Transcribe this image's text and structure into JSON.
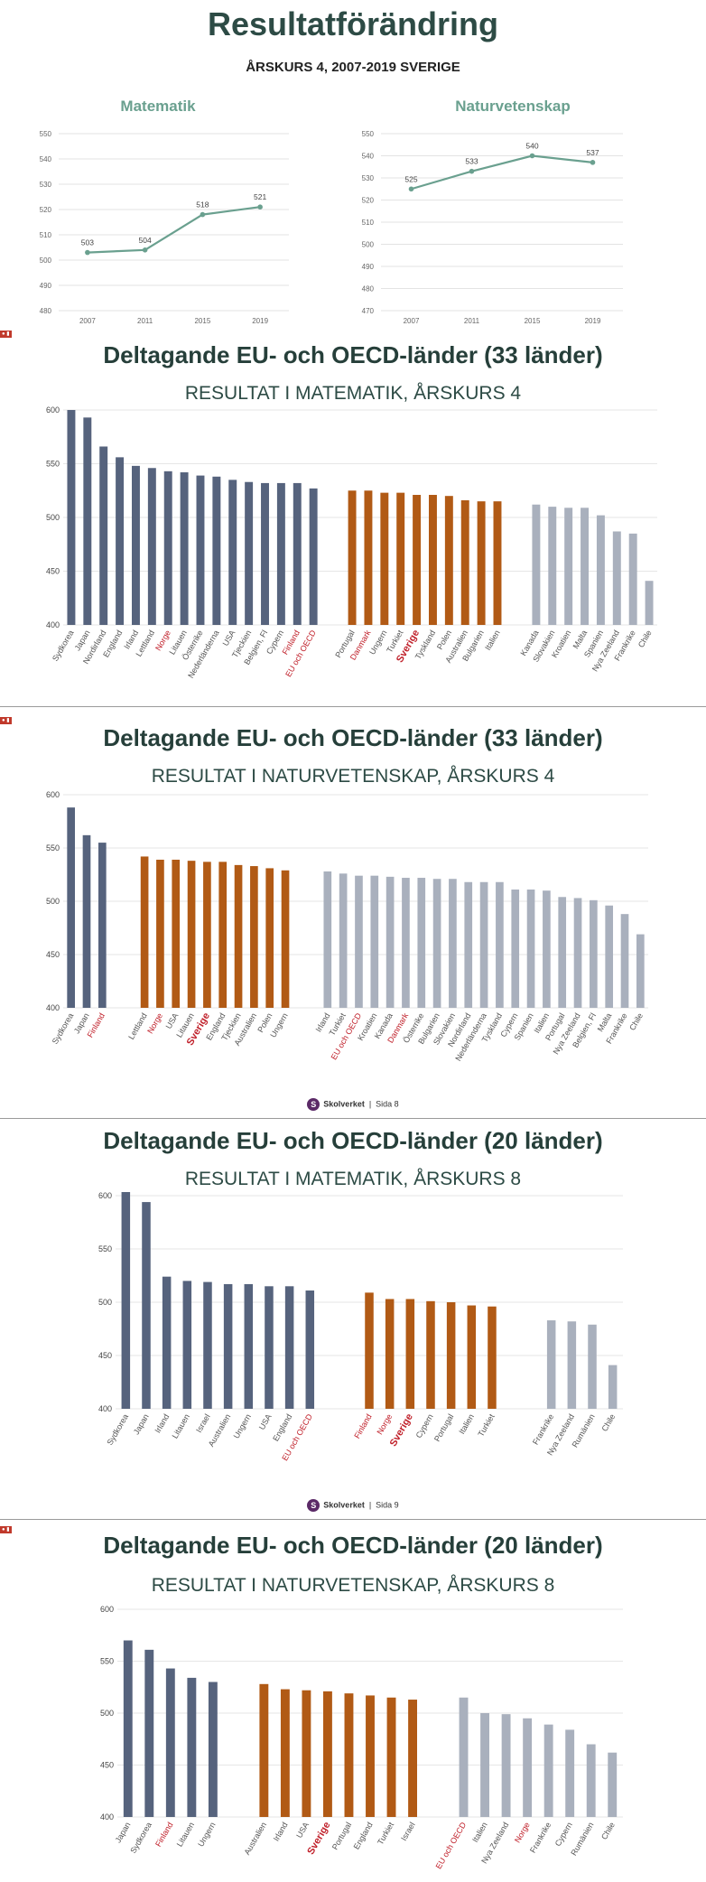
{
  "header": {
    "title": "Resultatförändring",
    "subtitle": "ÅRSKURS 4, 2007-2019 SVERIGE"
  },
  "sections": [
    {
      "title": "Deltagande EU- och OECD-länder (33 länder)",
      "subtitle": "RESULTAT I MATEMATIK, ÅRSKURS 4"
    },
    {
      "title": "Deltagande EU- och OECD-länder (33 länder)",
      "subtitle": "RESULTAT I NATURVETENSKAP, ÅRSKURS 4"
    },
    {
      "title": "Deltagande EU- och OECD-länder (20 länder)",
      "subtitle": "RESULTAT I MATEMATIK, ÅRSKURS 8"
    },
    {
      "title": "Deltagande EU- och OECD-länder (20 länder)",
      "subtitle": "RESULTAT I NATURVETENSKAP, ÅRSKURS 8"
    }
  ],
  "footers": [
    {
      "brand": "Skolverket",
      "page": "Sida 8"
    },
    {
      "brand": "Skolverket",
      "page": "Sida 9"
    }
  ],
  "colors": {
    "line": "#6aa08f",
    "above": "#56637d",
    "same": "#b15a15",
    "below": "#a9b0bd",
    "highlight": "#c0202a"
  },
  "chart_data": [
    {
      "type": "line",
      "title": "Matematik",
      "x": [
        "2007",
        "2011",
        "2015",
        "2019"
      ],
      "values": [
        503,
        504,
        518,
        521
      ],
      "ylim": [
        480,
        550
      ],
      "yticks": [
        480,
        490,
        500,
        510,
        520,
        530,
        540,
        550
      ]
    },
    {
      "type": "line",
      "title": "Naturvetenskap",
      "x": [
        "2007",
        "2011",
        "2015",
        "2019"
      ],
      "values": [
        525,
        533,
        540,
        537
      ],
      "ylim": [
        470,
        550
      ],
      "yticks": [
        470,
        480,
        490,
        500,
        510,
        520,
        530,
        540,
        550
      ]
    },
    {
      "type": "bar",
      "title": "RESULTAT I MATEMATIK, ÅRSKURS 4",
      "ylim": [
        400,
        600
      ],
      "yticks": [
        400,
        450,
        500,
        550,
        600
      ],
      "groups": [
        {
          "color": "above",
          "items": [
            {
              "label": "Sydkorea",
              "value": 600
            },
            {
              "label": "Japan",
              "value": 593
            },
            {
              "label": "Nordirland",
              "value": 566
            },
            {
              "label": "England",
              "value": 556
            },
            {
              "label": "Irland",
              "value": 548
            },
            {
              "label": "Lettland",
              "value": 546
            },
            {
              "label": "Norge",
              "value": 543,
              "highlight": true
            },
            {
              "label": "Litauen",
              "value": 542
            },
            {
              "label": "Österrike",
              "value": 539
            },
            {
              "label": "Nederländerna",
              "value": 538
            },
            {
              "label": "USA",
              "value": 535
            },
            {
              "label": "Tjeckien",
              "value": 533
            },
            {
              "label": "Belgien, Fl",
              "value": 532
            },
            {
              "label": "Cypern",
              "value": 532
            },
            {
              "label": "Finland",
              "value": 532,
              "highlight": true
            },
            {
              "label": "EU och OECD",
              "value": 527,
              "highlight": true
            }
          ]
        },
        {
          "color": "same",
          "items": [
            {
              "label": "Portugal",
              "value": 525
            },
            {
              "label": "Danmark",
              "value": 525,
              "highlight": true
            },
            {
              "label": "Ungern",
              "value": 523
            },
            {
              "label": "Turkiet",
              "value": 523
            },
            {
              "label": "Sverige",
              "value": 521,
              "highlight": true,
              "bold": true
            },
            {
              "label": "Tyskland",
              "value": 521
            },
            {
              "label": "Polen",
              "value": 520
            },
            {
              "label": "Australien",
              "value": 516
            },
            {
              "label": "Bulgarien",
              "value": 515
            },
            {
              "label": "Italien",
              "value": 515
            }
          ]
        },
        {
          "color": "below",
          "items": [
            {
              "label": "Kanada",
              "value": 512
            },
            {
              "label": "Slovakien",
              "value": 510
            },
            {
              "label": "Kroatien",
              "value": 509
            },
            {
              "label": "Malta",
              "value": 509
            },
            {
              "label": "Spanien",
              "value": 502
            },
            {
              "label": "Nya Zeeland",
              "value": 487
            },
            {
              "label": "Frankrike",
              "value": 485
            },
            {
              "label": "Chile",
              "value": 441
            }
          ]
        }
      ]
    },
    {
      "type": "bar",
      "title": "RESULTAT I NATURVETENSKAP, ÅRSKURS 4",
      "ylim": [
        400,
        600
      ],
      "yticks": [
        400,
        450,
        500,
        550,
        600
      ],
      "groups": [
        {
          "color": "above",
          "items": [
            {
              "label": "Sydkorea",
              "value": 588
            },
            {
              "label": "Japan",
              "value": 562
            },
            {
              "label": "Finland",
              "value": 555,
              "highlight": true
            }
          ]
        },
        {
          "color": "same",
          "items": [
            {
              "label": "Lettland",
              "value": 542
            },
            {
              "label": "Norge",
              "value": 539,
              "highlight": true
            },
            {
              "label": "USA",
              "value": 539
            },
            {
              "label": "Litauen",
              "value": 538
            },
            {
              "label": "Sverige",
              "value": 537,
              "highlight": true,
              "bold": true
            },
            {
              "label": "England",
              "value": 537
            },
            {
              "label": "Tjeckien",
              "value": 534
            },
            {
              "label": "Australien",
              "value": 533
            },
            {
              "label": "Polen",
              "value": 531
            },
            {
              "label": "Ungern",
              "value": 529
            }
          ]
        },
        {
          "color": "below",
          "items": [
            {
              "label": "Irland",
              "value": 528
            },
            {
              "label": "Turkiet",
              "value": 526
            },
            {
              "label": "EU och OECD",
              "value": 524,
              "highlight": true
            },
            {
              "label": "Kroatien",
              "value": 524
            },
            {
              "label": "Kanada",
              "value": 523
            },
            {
              "label": "Danmark",
              "value": 522,
              "highlight": true
            },
            {
              "label": "Österrike",
              "value": 522
            },
            {
              "label": "Bulgarien",
              "value": 521
            },
            {
              "label": "Slovakien",
              "value": 521
            },
            {
              "label": "Nordirland",
              "value": 518
            },
            {
              "label": "Nederländerna",
              "value": 518
            },
            {
              "label": "Tyskland",
              "value": 518
            },
            {
              "label": "Cypern",
              "value": 511
            },
            {
              "label": "Spanien",
              "value": 511
            },
            {
              "label": "Italien",
              "value": 510
            },
            {
              "label": "Portugal",
              "value": 504
            },
            {
              "label": "Nya Zeeland",
              "value": 503
            },
            {
              "label": "Belgien, Fl",
              "value": 501
            },
            {
              "label": "Malta",
              "value": 496
            },
            {
              "label": "Frankrike",
              "value": 488
            },
            {
              "label": "Chile",
              "value": 469
            }
          ]
        }
      ]
    },
    {
      "type": "bar",
      "title": "RESULTAT I MATEMATIK, ÅRSKURS 8",
      "ylim": [
        400,
        600
      ],
      "yticks": [
        400,
        450,
        500,
        550,
        600
      ],
      "groups": [
        {
          "color": "above",
          "items": [
            {
              "label": "Sydkorea",
              "value": 607
            },
            {
              "label": "Japan",
              "value": 594
            },
            {
              "label": "Irland",
              "value": 524
            },
            {
              "label": "Litauen",
              "value": 520
            },
            {
              "label": "Israel",
              "value": 519
            },
            {
              "label": "Australien",
              "value": 517
            },
            {
              "label": "Ungern",
              "value": 517
            },
            {
              "label": "USA",
              "value": 515
            },
            {
              "label": "England",
              "value": 515
            },
            {
              "label": "EU och OECD",
              "value": 511,
              "highlight": true
            }
          ]
        },
        {
          "color": "same",
          "items": [
            {
              "label": "Finland",
              "value": 509,
              "highlight": true
            },
            {
              "label": "Norge",
              "value": 503,
              "highlight": true
            },
            {
              "label": "Sverige",
              "value": 503,
              "highlight": true,
              "bold": true
            },
            {
              "label": "Cypern",
              "value": 501
            },
            {
              "label": "Portugal",
              "value": 500
            },
            {
              "label": "Italien",
              "value": 497
            },
            {
              "label": "Turkiet",
              "value": 496
            }
          ]
        },
        {
          "color": "below",
          "items": [
            {
              "label": "Frankrike",
              "value": 483
            },
            {
              "label": "Nya Zeeland",
              "value": 482
            },
            {
              "label": "Rumänien",
              "value": 479
            },
            {
              "label": "Chile",
              "value": 441
            }
          ]
        }
      ]
    },
    {
      "type": "bar",
      "title": "RESULTAT I NATURVETENSKAP, ÅRSKURS 8",
      "ylim": [
        400,
        600
      ],
      "yticks": [
        400,
        450,
        500,
        550,
        600
      ],
      "groups": [
        {
          "color": "above",
          "items": [
            {
              "label": "Japan",
              "value": 570
            },
            {
              "label": "Sydkorea",
              "value": 561
            },
            {
              "label": "Finland",
              "value": 543,
              "highlight": true
            },
            {
              "label": "Litauen",
              "value": 534
            },
            {
              "label": "Ungern",
              "value": 530
            }
          ]
        },
        {
          "color": "same",
          "items": [
            {
              "label": "Australien",
              "value": 528
            },
            {
              "label": "Irland",
              "value": 523
            },
            {
              "label": "USA",
              "value": 522
            },
            {
              "label": "Sverige",
              "value": 521,
              "highlight": true,
              "bold": true
            },
            {
              "label": "Portugal",
              "value": 519
            },
            {
              "label": "England",
              "value": 517
            },
            {
              "label": "Turkiet",
              "value": 515
            },
            {
              "label": "Israel",
              "value": 513
            }
          ]
        },
        {
          "color": "below",
          "items": [
            {
              "label": "EU och OECD",
              "value": 515,
              "highlight": true
            },
            {
              "label": "Italien",
              "value": 500
            },
            {
              "label": "Nya Zeeland",
              "value": 499
            },
            {
              "label": "Norge",
              "value": 495,
              "highlight": true
            },
            {
              "label": "Frankrike",
              "value": 489
            },
            {
              "label": "Cypern",
              "value": 484
            },
            {
              "label": "Rumänien",
              "value": 470
            },
            {
              "label": "Chile",
              "value": 462
            }
          ]
        }
      ]
    }
  ]
}
